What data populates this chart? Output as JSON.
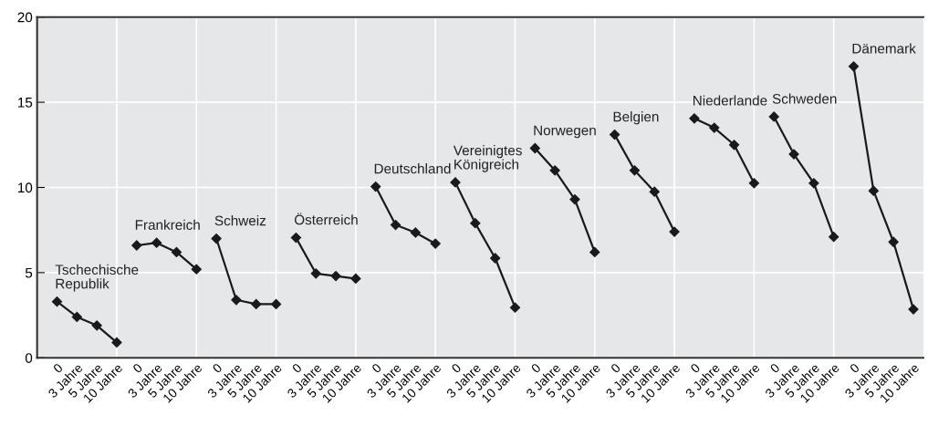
{
  "chart_data": {
    "type": "line",
    "marker": "diamond",
    "line_style": "solid",
    "grid": true,
    "legend": false,
    "ylim": [
      0,
      20
    ],
    "yticks": [
      0,
      5,
      10,
      15,
      20
    ],
    "categories": [
      "0",
      "3 Jahre",
      "5 Jahre",
      "10 Jahre",
      "0",
      "3 Jahre",
      "5 Jahre",
      "10 Jahre",
      "0",
      "3 Jahre",
      "5 Jahre",
      "10 Jahre",
      "0",
      "3 Jahre",
      "5 Jahre",
      "10 Jahre",
      "0",
      "3 Jahre",
      "5 Jahre",
      "10 Jahre",
      "0",
      "3 Jahre",
      "5 Jahre",
      "10 Jahre",
      "0",
      "3 Jahre",
      "5 Jahre",
      "10 Jahre",
      "0",
      "3 Jahre",
      "5 Jahre",
      "10 Jahre",
      "0",
      "3 Jahre",
      "5 Jahre",
      "10 Jahre",
      "0",
      "3 Jahre",
      "5 Jahre",
      "10 Jahre",
      "0",
      "3 Jahre",
      "5 Jahre",
      "10 Jahre"
    ],
    "series": [
      {
        "name": "Tschechische\nRepublik",
        "color": "#1a1a1a",
        "values": [
          3.3,
          2.4,
          1.9,
          0.9,
          null,
          null,
          null,
          null,
          null,
          null,
          null,
          null,
          null,
          null,
          null,
          null,
          null,
          null,
          null,
          null,
          null,
          null,
          null,
          null,
          null,
          null,
          null,
          null,
          null,
          null,
          null,
          null,
          null,
          null,
          null,
          null,
          null,
          null,
          null,
          null,
          null,
          null,
          null,
          null
        ]
      },
      {
        "name": "Frankreich",
        "color": "#1a1a1a",
        "values": [
          null,
          null,
          null,
          null,
          6.6,
          6.75,
          6.2,
          5.2,
          null,
          null,
          null,
          null,
          null,
          null,
          null,
          null,
          null,
          null,
          null,
          null,
          null,
          null,
          null,
          null,
          null,
          null,
          null,
          null,
          null,
          null,
          null,
          null,
          null,
          null,
          null,
          null,
          null,
          null,
          null,
          null,
          null,
          null,
          null,
          null
        ]
      },
      {
        "name": "Schweiz",
        "color": "#1a1a1a",
        "values": [
          null,
          null,
          null,
          null,
          null,
          null,
          null,
          null,
          7.0,
          3.4,
          3.15,
          3.15,
          null,
          null,
          null,
          null,
          null,
          null,
          null,
          null,
          null,
          null,
          null,
          null,
          null,
          null,
          null,
          null,
          null,
          null,
          null,
          null,
          null,
          null,
          null,
          null,
          null,
          null,
          null,
          null,
          null,
          null,
          null,
          null
        ]
      },
      {
        "name": "Österreich",
        "color": "#1a1a1a",
        "values": [
          null,
          null,
          null,
          null,
          null,
          null,
          null,
          null,
          null,
          null,
          null,
          null,
          7.05,
          4.95,
          4.8,
          4.65,
          null,
          null,
          null,
          null,
          null,
          null,
          null,
          null,
          null,
          null,
          null,
          null,
          null,
          null,
          null,
          null,
          null,
          null,
          null,
          null,
          null,
          null,
          null,
          null,
          null,
          null,
          null,
          null
        ]
      },
      {
        "name": "Deutschland",
        "color": "#1a1a1a",
        "values": [
          null,
          null,
          null,
          null,
          null,
          null,
          null,
          null,
          null,
          null,
          null,
          null,
          null,
          null,
          null,
          null,
          10.05,
          7.8,
          7.35,
          6.7,
          null,
          null,
          null,
          null,
          null,
          null,
          null,
          null,
          null,
          null,
          null,
          null,
          null,
          null,
          null,
          null,
          null,
          null,
          null,
          null,
          null,
          null,
          null,
          null
        ]
      },
      {
        "name": "Vereinigtes\nKönigreich",
        "color": "#1a1a1a",
        "values": [
          null,
          null,
          null,
          null,
          null,
          null,
          null,
          null,
          null,
          null,
          null,
          null,
          null,
          null,
          null,
          null,
          null,
          null,
          null,
          null,
          10.3,
          7.9,
          5.85,
          2.95,
          null,
          null,
          null,
          null,
          null,
          null,
          null,
          null,
          null,
          null,
          null,
          null,
          null,
          null,
          null,
          null,
          null,
          null,
          null,
          null
        ]
      },
      {
        "name": "Norwegen",
        "color": "#1a1a1a",
        "values": [
          null,
          null,
          null,
          null,
          null,
          null,
          null,
          null,
          null,
          null,
          null,
          null,
          null,
          null,
          null,
          null,
          null,
          null,
          null,
          null,
          null,
          null,
          null,
          null,
          12.3,
          11.0,
          9.3,
          6.2,
          null,
          null,
          null,
          null,
          null,
          null,
          null,
          null,
          null,
          null,
          null,
          null,
          null,
          null,
          null,
          null
        ]
      },
      {
        "name": "Belgien",
        "color": "#1a1a1a",
        "values": [
          null,
          null,
          null,
          null,
          null,
          null,
          null,
          null,
          null,
          null,
          null,
          null,
          null,
          null,
          null,
          null,
          null,
          null,
          null,
          null,
          null,
          null,
          null,
          null,
          null,
          null,
          null,
          null,
          13.1,
          11.0,
          9.75,
          7.4,
          null,
          null,
          null,
          null,
          null,
          null,
          null,
          null,
          null,
          null,
          null,
          null
        ]
      },
      {
        "name": "Niederlande",
        "color": "#1a1a1a",
        "values": [
          null,
          null,
          null,
          null,
          null,
          null,
          null,
          null,
          null,
          null,
          null,
          null,
          null,
          null,
          null,
          null,
          null,
          null,
          null,
          null,
          null,
          null,
          null,
          null,
          null,
          null,
          null,
          null,
          null,
          null,
          null,
          null,
          14.05,
          13.5,
          12.5,
          10.25,
          null,
          null,
          null,
          null,
          null,
          null,
          null,
          null
        ]
      },
      {
        "name": "Schweden",
        "color": "#1a1a1a",
        "values": [
          null,
          null,
          null,
          null,
          null,
          null,
          null,
          null,
          null,
          null,
          null,
          null,
          null,
          null,
          null,
          null,
          null,
          null,
          null,
          null,
          null,
          null,
          null,
          null,
          null,
          null,
          null,
          null,
          null,
          null,
          null,
          null,
          null,
          null,
          null,
          null,
          14.15,
          11.95,
          10.25,
          7.1,
          null,
          null,
          null,
          null
        ]
      },
      {
        "name": "Dänemark",
        "color": "#1a1a1a",
        "values": [
          null,
          null,
          null,
          null,
          null,
          null,
          null,
          null,
          null,
          null,
          null,
          null,
          null,
          null,
          null,
          null,
          null,
          null,
          null,
          null,
          null,
          null,
          null,
          null,
          null,
          null,
          null,
          null,
          null,
          null,
          null,
          null,
          null,
          null,
          null,
          null,
          null,
          null,
          null,
          null,
          17.1,
          9.8,
          6.8,
          2.85
        ]
      }
    ]
  }
}
